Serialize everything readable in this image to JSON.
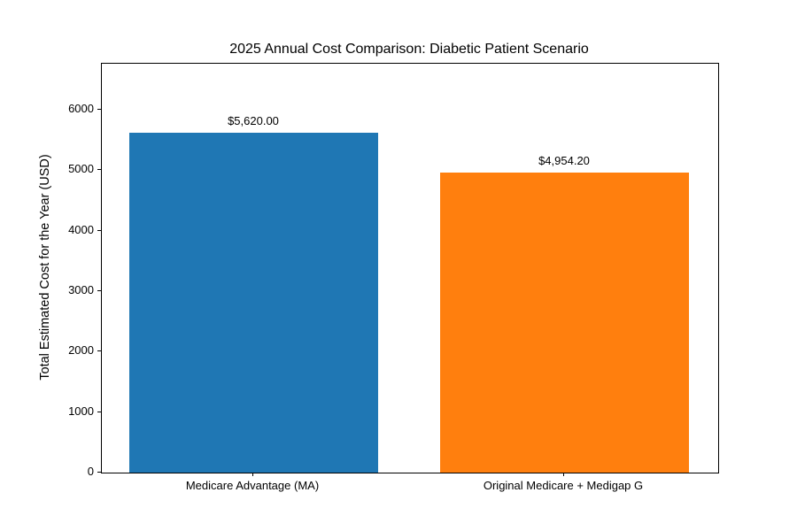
{
  "chart_data": {
    "type": "bar",
    "title": "2025 Annual Cost Comparison: Diabetic Patient Scenario",
    "xlabel": "",
    "ylabel": "Total Estimated Cost for the Year (USD)",
    "categories": [
      "Medicare Advantage (MA)",
      "Original Medicare + Medigap G"
    ],
    "values": [
      5620.0,
      4954.2
    ],
    "bar_value_labels": [
      "$5,620.00",
      "$4,954.20"
    ],
    "bar_colors": [
      "#1f77b4",
      "#ff7f0e"
    ],
    "yticks": [
      0,
      1000,
      2000,
      3000,
      4000,
      5000,
      6000
    ],
    "ytick_labels": [
      "0",
      "1000",
      "2000",
      "3000",
      "4000",
      "5000",
      "6000"
    ],
    "ylim": [
      0,
      6760
    ],
    "grid": false,
    "legend": null,
    "background_color": "#ffffff",
    "text_color": "#000000"
  }
}
